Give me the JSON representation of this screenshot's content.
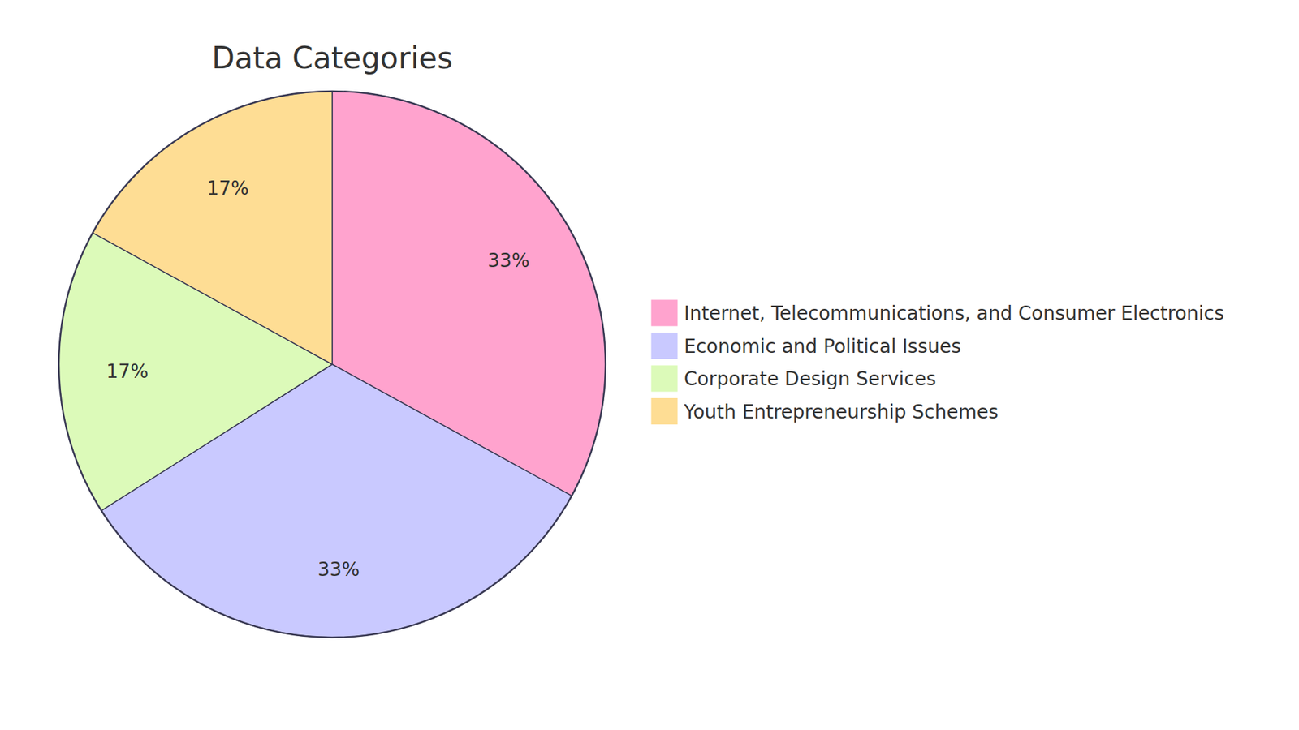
{
  "chart_data": {
    "type": "pie",
    "title": "Data Categories",
    "categories": [
      "Internet, Telecommunications, and Consumer Electronics",
      "Economic and Political Issues",
      "Corporate Design Services",
      "Youth Entrepreneurship Schemes"
    ],
    "values": [
      33,
      33,
      17,
      17
    ],
    "value_labels": [
      "33%",
      "33%",
      "17%",
      "17%"
    ],
    "colors": [
      "#ffa3ce",
      "#c9c9ff",
      "#dcfab9",
      "#fedd94"
    ],
    "data_labels": true,
    "legend": "right"
  }
}
